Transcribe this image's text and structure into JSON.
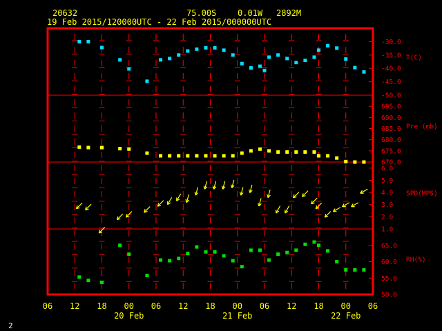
{
  "header": {
    "station": "20632",
    "lat": "75.00S",
    "lon": "0.01W",
    "elev": "2892M",
    "period": "19 Feb 2015/120000UTC - 22 Feb 2015/000000UTC"
  },
  "footer": {
    "page": "2"
  },
  "colors": {
    "frame": "#ff0000",
    "text": "#ffff00",
    "temp": "#00e0ff",
    "pressure": "#ffff00",
    "wind": "#ffff00",
    "rh": "#00e000"
  },
  "x_axis": {
    "hour_ticks": [
      "06",
      "12",
      "18",
      "00",
      "06",
      "12",
      "18",
      "00",
      "06",
      "12",
      "18",
      "00",
      "06"
    ],
    "hour_offsets": [
      -6,
      0,
      6,
      12,
      18,
      24,
      30,
      36,
      42,
      48,
      54,
      60,
      66
    ],
    "day_labels": [
      {
        "label": "20 Feb",
        "hour": 12
      },
      {
        "label": "21 Feb",
        "hour": 36
      },
      {
        "label": "22 Feb",
        "hour": 60
      }
    ]
  },
  "panels": [
    {
      "id": "temperature",
      "label": "T(C)",
      "min": -50,
      "max": -25,
      "ticks": [
        "-30.0",
        "-35.0",
        "-40.0",
        "-45.0",
        "-50.0"
      ],
      "tick_values": [
        -30,
        -35,
        -40,
        -45,
        -50
      ]
    },
    {
      "id": "pressure",
      "label": "Pre (mb)",
      "min": 670,
      "max": 700,
      "ticks": [
        "695.0",
        "690.0",
        "685.0",
        "680.0",
        "675.0",
        "670.0"
      ],
      "tick_values": [
        695,
        690,
        685,
        680,
        675,
        670
      ]
    },
    {
      "id": "wind",
      "label": "SPD(MPS)",
      "min": 1,
      "max": 6.5,
      "ticks": [
        "6.0",
        "5.0",
        "4.0",
        "3.0",
        "2.0",
        "1.0"
      ],
      "tick_values": [
        6,
        5,
        4,
        3,
        2,
        1
      ]
    },
    {
      "id": "rh",
      "label": "RH(%)",
      "min": 50,
      "max": 70,
      "ticks": [
        "65.0",
        "60.0",
        "55.0",
        "50.0"
      ],
      "tick_values": [
        65,
        60,
        55,
        50
      ]
    }
  ],
  "chart_data": {
    "type": "scatter",
    "x_unit": "hours since 19 Feb 2015 12:00 UTC",
    "xlim": [
      -6,
      66
    ],
    "series": [
      {
        "name": "T(C)",
        "panel": "temperature",
        "x": [
          1,
          3,
          6,
          10,
          12,
          16,
          19,
          21,
          23,
          25,
          27,
          29,
          31,
          33,
          35,
          37,
          39,
          41,
          42,
          43,
          45,
          47,
          49,
          51,
          53,
          54,
          56,
          58,
          60,
          62,
          64
        ],
        "y": [
          -30.0,
          -30.0,
          -32.2,
          -36.8,
          -40.2,
          -44.8,
          -36.8,
          -36.3,
          -35.0,
          -33.5,
          -32.8,
          -32.3,
          -32.3,
          -33.2,
          -35.0,
          -38.2,
          -39.8,
          -39.2,
          -40.8,
          -35.8,
          -35.0,
          -36.3,
          -37.8,
          -37.0,
          -35.8,
          -33.2,
          -31.5,
          -32.4,
          -36.5,
          -39.7,
          -41.3
        ]
      },
      {
        "name": "Pre (mb)",
        "panel": "pressure",
        "x": [
          1,
          3,
          6,
          10,
          12,
          16,
          19,
          21,
          23,
          25,
          27,
          29,
          31,
          33,
          35,
          37,
          39,
          41,
          43,
          45,
          47,
          49,
          51,
          53,
          54,
          56,
          58,
          60,
          62,
          64
        ],
        "y": [
          676.7,
          676.5,
          676.5,
          676.0,
          675.8,
          674.0,
          672.8,
          672.8,
          672.8,
          672.8,
          672.8,
          672.8,
          672.8,
          672.8,
          672.8,
          674.0,
          675.0,
          675.8,
          675.0,
          674.5,
          674.5,
          674.5,
          674.5,
          674.5,
          672.8,
          672.8,
          671.8,
          670.2,
          670.0,
          670.0
        ]
      },
      {
        "name": "SPD(MPS)",
        "panel": "wind",
        "x": [
          1,
          3,
          6,
          10,
          12,
          16,
          19,
          21,
          23,
          25,
          27,
          29,
          31,
          33,
          35,
          37,
          39,
          41,
          43,
          45,
          47,
          49,
          51,
          53,
          54,
          56,
          58,
          60,
          62,
          64
        ],
        "y": [
          2.9,
          2.8,
          0.9,
          2.0,
          2.2,
          2.6,
          3.1,
          3.3,
          3.6,
          3.5,
          4.1,
          4.6,
          4.6,
          4.6,
          4.7,
          4.1,
          4.3,
          3.2,
          3.9,
          2.6,
          2.6,
          3.8,
          3.9,
          3.3,
          2.9,
          2.2,
          2.6,
          3.0,
          3.0,
          4.1
        ]
      },
      {
        "name": "RH(%)",
        "panel": "rh",
        "x": [
          1,
          3,
          6,
          10,
          12,
          16,
          19,
          21,
          23,
          25,
          27,
          29,
          31,
          33,
          35,
          37,
          39,
          41,
          43,
          45,
          47,
          49,
          51,
          53,
          54,
          56,
          58,
          60,
          62,
          64
        ],
        "y": [
          55.3,
          54.3,
          53.7,
          65.0,
          62.3,
          55.8,
          60.5,
          60.3,
          61.0,
          62.5,
          64.5,
          63.0,
          63.0,
          61.8,
          60.3,
          58.5,
          63.5,
          63.5,
          60.5,
          62.3,
          62.8,
          63.5,
          65.3,
          66.0,
          65.0,
          63.3,
          60.0,
          57.5,
          57.5,
          57.5
        ]
      }
    ],
    "wind_direction_deg": [
      45,
      45,
      45,
      45,
      45,
      45,
      45,
      30,
      30,
      15,
      15,
      15,
      15,
      15,
      15,
      15,
      15,
      15,
      15,
      30,
      30,
      45,
      45,
      45,
      45,
      45,
      60,
      60,
      60,
      60
    ]
  }
}
